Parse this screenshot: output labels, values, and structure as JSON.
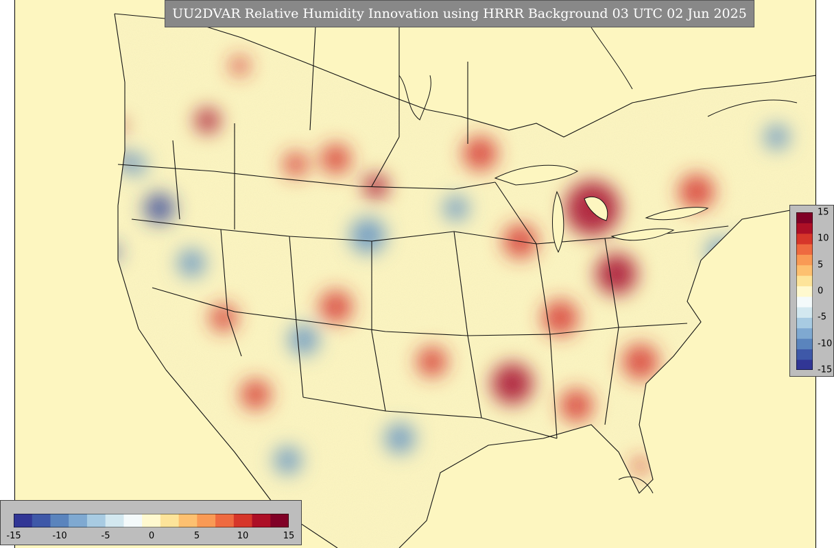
{
  "title": "UU2DVAR Relative Humidity Innovation using HRRR Background 03 UTC 02 Jun 2025",
  "colorbar": {
    "min": -15,
    "max": 15,
    "tick_labels": [
      "-15",
      "-10",
      "-5",
      "0",
      "5",
      "10",
      "15"
    ],
    "colors": [
      "#313695",
      "#3e58a8",
      "#5a84bd",
      "#7fa9d1",
      "#a8cbe2",
      "#d3e8f0",
      "#f4fafb",
      "#fff9cf",
      "#fde49a",
      "#fdc070",
      "#f99a55",
      "#ee6a40",
      "#d6362a",
      "#ad0f26",
      "#800026"
    ]
  },
  "map_colors": {
    "background": "#fdf6c0",
    "warm": "#d7302a",
    "hot": "#a50026",
    "cool": "#5b8fc6",
    "cold": "#2f3f98"
  },
  "blobs": [
    {
      "x": 24,
      "y": 22,
      "r": 18,
      "c": "hot"
    },
    {
      "x": 18,
      "y": 38,
      "r": 22,
      "c": "cold"
    },
    {
      "x": 28,
      "y": 12,
      "r": 14,
      "c": "warm"
    },
    {
      "x": 15,
      "y": 30,
      "r": 16,
      "c": "cool"
    },
    {
      "x": 40,
      "y": 29,
      "r": 22,
      "c": "warm"
    },
    {
      "x": 58,
      "y": 28,
      "r": 25,
      "c": "warm"
    },
    {
      "x": 72,
      "y": 38,
      "r": 40,
      "c": "hot"
    },
    {
      "x": 63,
      "y": 44,
      "r": 25,
      "c": "warm"
    },
    {
      "x": 75,
      "y": 50,
      "r": 30,
      "c": "hot"
    },
    {
      "x": 68,
      "y": 58,
      "r": 26,
      "c": "warm"
    },
    {
      "x": 78,
      "y": 66,
      "r": 26,
      "c": "warm"
    },
    {
      "x": 62,
      "y": 70,
      "r": 30,
      "c": "hot"
    },
    {
      "x": 70,
      "y": 74,
      "r": 24,
      "c": "warm"
    },
    {
      "x": 85,
      "y": 35,
      "r": 26,
      "c": "warm"
    },
    {
      "x": 88,
      "y": 46,
      "r": 20,
      "c": "cool"
    },
    {
      "x": 95,
      "y": 25,
      "r": 18,
      "c": "cool"
    },
    {
      "x": 44,
      "y": 43,
      "r": 26,
      "c": "cool"
    },
    {
      "x": 40,
      "y": 56,
      "r": 24,
      "c": "warm"
    },
    {
      "x": 36,
      "y": 62,
      "r": 22,
      "c": "cool"
    },
    {
      "x": 30,
      "y": 72,
      "r": 22,
      "c": "warm"
    },
    {
      "x": 22,
      "y": 48,
      "r": 20,
      "c": "cool"
    },
    {
      "x": 26,
      "y": 58,
      "r": 20,
      "c": "warm"
    },
    {
      "x": 48,
      "y": 80,
      "r": 22,
      "c": "cool"
    },
    {
      "x": 34,
      "y": 84,
      "r": 20,
      "c": "cool"
    },
    {
      "x": 52,
      "y": 66,
      "r": 22,
      "c": "warm"
    },
    {
      "x": 45,
      "y": 34,
      "r": 18,
      "c": "hot"
    },
    {
      "x": 35,
      "y": 30,
      "r": 18,
      "c": "warm"
    },
    {
      "x": 55,
      "y": 38,
      "r": 18,
      "c": "cool"
    },
    {
      "x": 12,
      "y": 46,
      "r": 12,
      "c": "cold"
    },
    {
      "x": 13,
      "y": 29,
      "r": 10,
      "c": "cold"
    },
    {
      "x": 13,
      "y": 23,
      "r": 9,
      "c": "hot"
    },
    {
      "x": 84,
      "y": 76,
      "r": 10,
      "c": "cold"
    },
    {
      "x": 91,
      "y": 44,
      "r": 8,
      "c": "cold"
    },
    {
      "x": 22,
      "y": 81,
      "r": 9,
      "c": "cold"
    },
    {
      "x": 78,
      "y": 85,
      "r": 12,
      "c": "warm"
    }
  ]
}
